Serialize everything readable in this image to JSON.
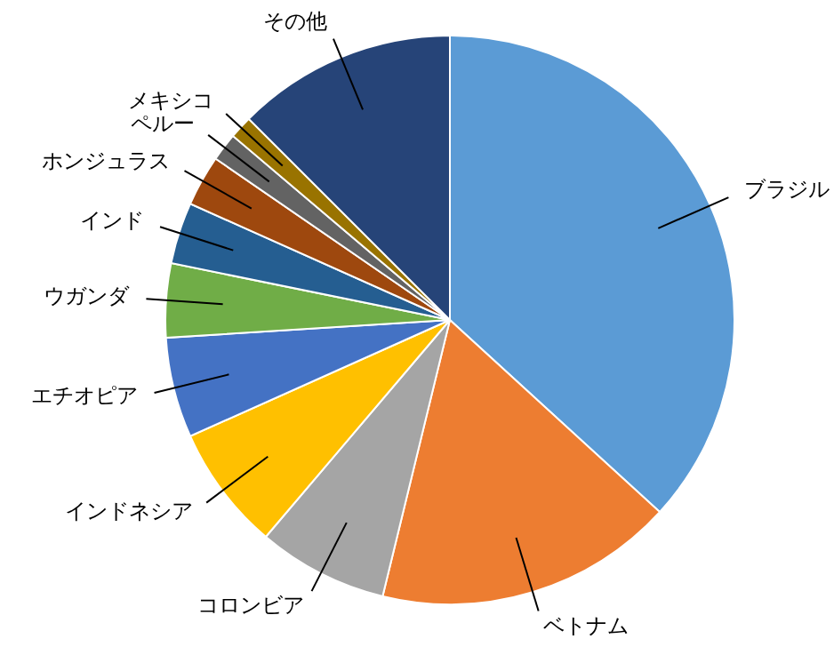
{
  "chart_data": {
    "type": "pie",
    "categories": [
      "ブラジル",
      "ベトナム",
      "コロンビア",
      "インドネシア",
      "エチオピア",
      "ウガンダ",
      "インド",
      "ホンジュラス",
      "ペルー",
      "メキシコ",
      "その他"
    ],
    "values": [
      36.8,
      17,
      7.4,
      7.1,
      5.7,
      4.2,
      3.5,
      2.9,
      1.6,
      1.3,
      12.5
    ],
    "colors": [
      "#5b9bd5",
      "#ed7d31",
      "#a5a5a5",
      "#ffc000",
      "#4472c4",
      "#70ad47",
      "#255e91",
      "#9e480e",
      "#636363",
      "#997300",
      "#264478"
    ]
  }
}
